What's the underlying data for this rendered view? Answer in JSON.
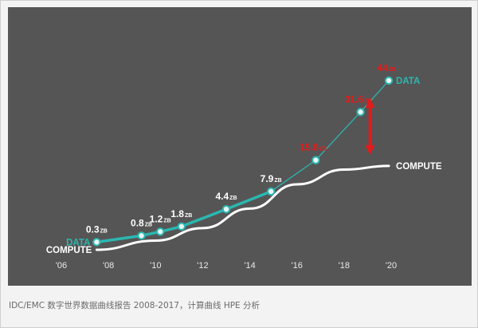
{
  "caption": "IDC/EMC 数字世界数据曲线报告 2008-2017，计算曲线 HPE 分析",
  "chart_data": {
    "type": "line",
    "x_ticks": [
      "'06",
      "'08",
      "'10",
      "'12",
      "'14",
      "'16",
      "'18",
      "'20"
    ],
    "x_tick_values": [
      2006,
      2008,
      2010,
      2012,
      2014,
      2016,
      2018,
      2020
    ],
    "xlim": [
      2006,
      2020
    ],
    "ylim": [
      0,
      44
    ],
    "unit": "ZB",
    "series": [
      {
        "name": "DATA",
        "color": "#2bb7b1",
        "points": [
          {
            "x": 2007.5,
            "y": 0.3,
            "label": "0.3",
            "label_color": "#ffffff"
          },
          {
            "x": 2009.4,
            "y": 0.8,
            "label": "0.8",
            "label_color": "#ffffff"
          },
          {
            "x": 2010.2,
            "y": 1.2,
            "label": "1.2",
            "label_color": "#ffffff"
          },
          {
            "x": 2011.1,
            "y": 1.8,
            "label": "1.8",
            "label_color": "#ffffff"
          },
          {
            "x": 2013.0,
            "y": 4.4,
            "label": "4.4",
            "label_color": "#ffffff"
          },
          {
            "x": 2014.9,
            "y": 7.9,
            "label": "7.9",
            "label_color": "#ffffff"
          },
          {
            "x": 2016.8,
            "y": 15.8,
            "label": "15.8",
            "label_color": "#e41b1b"
          },
          {
            "x": 2018.7,
            "y": 31.6,
            "label": "31.6",
            "label_color": "#e41b1b"
          },
          {
            "x": 2019.9,
            "y": 44,
            "label": "44",
            "label_color": "#e41b1b"
          }
        ]
      },
      {
        "name": "COMPUTE",
        "color": "#ffffff",
        "points": [
          {
            "x": 2007.5,
            "y": 0.0
          },
          {
            "x": 2010.0,
            "y": 0.4
          },
          {
            "x": 2012.0,
            "y": 1.6
          },
          {
            "x": 2014.0,
            "y": 4.5
          },
          {
            "x": 2016.0,
            "y": 9.5
          },
          {
            "x": 2018.0,
            "y": 13.2
          },
          {
            "x": 2019.9,
            "y": 14.2
          }
        ]
      }
    ],
    "gap_arrow": {
      "x": 2019.1,
      "from": 14.2,
      "to": 44,
      "color": "#e41b1b"
    }
  }
}
